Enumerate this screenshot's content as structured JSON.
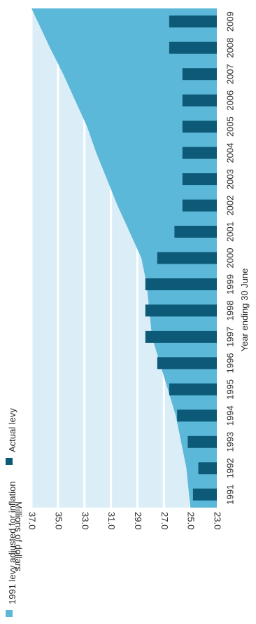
{
  "chart_data": {
    "type": "bar",
    "title": "",
    "xlabel": "Year ending 30 June",
    "ylabel": "Millions of dollars",
    "orientation": "horizontal, figure rotated 90 degrees clockwise",
    "ylim": [
      23.0,
      37.0
    ],
    "y_ticks": [
      "23.0",
      "25.0",
      "27.0",
      "29.0",
      "31.0",
      "33.0",
      "35.0",
      "37.0"
    ],
    "categories": [
      "1991",
      "1992",
      "1993",
      "1994",
      "1995",
      "1996",
      "1997",
      "1998",
      "1999",
      "2000",
      "2001",
      "2002",
      "2003",
      "2004",
      "2005",
      "2006",
      "2007",
      "2008",
      "2009"
    ],
    "legend_position": "bottom-left",
    "series": [
      {
        "name": "1991 levy adjusted for inflation",
        "type": "area",
        "color": "#5cb8d8",
        "values": [
          25.0,
          25.3,
          25.7,
          26.1,
          26.7,
          27.3,
          27.9,
          28.1,
          28.3,
          28.7,
          29.6,
          30.5,
          31.3,
          32.1,
          32.8,
          33.7,
          34.6,
          35.6,
          37.0
        ]
      },
      {
        "name": "Actual levy",
        "type": "bar",
        "color": "#0d5a78",
        "values": [
          24.8,
          24.4,
          25.2,
          26.0,
          26.6,
          27.5,
          28.4,
          28.4,
          28.4,
          27.5,
          26.2,
          25.6,
          25.6,
          25.6,
          25.6,
          25.6,
          25.6,
          26.6,
          26.6
        ]
      }
    ],
    "colors": {
      "background_band": "#dbeef7",
      "gridline": "#ffffff"
    }
  }
}
